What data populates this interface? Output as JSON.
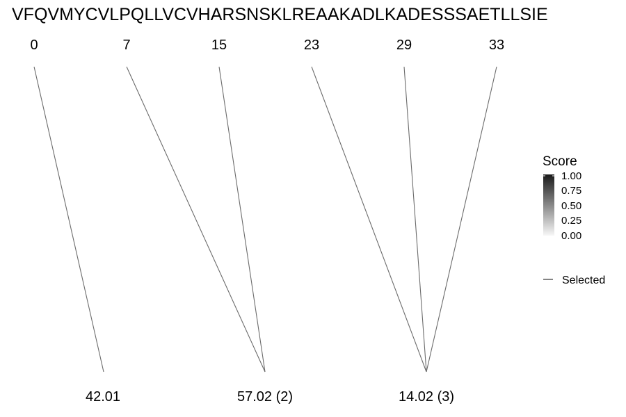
{
  "sequence": "VFQVMYCVLPQLLVCVHARSNSKLREAAKADLKADESSSAETLLSIE",
  "cut_positions": [
    "0",
    "7",
    "15",
    "23",
    "29",
    "33"
  ],
  "fragments": [
    {
      "label": "42.01",
      "from_positions": [
        "0"
      ]
    },
    {
      "label": "57.02 (2)",
      "from_positions": [
        "7",
        "15"
      ]
    },
    {
      "label": "14.02 (3)",
      "from_positions": [
        "23",
        "29",
        "33"
      ]
    }
  ],
  "legend": {
    "title": "Score",
    "ticks": [
      "1.00",
      "0.75",
      "0.50",
      "0.25",
      "0.00"
    ],
    "gradient_top_color": "#1a1a1a",
    "gradient_bottom_color": "#f7f7f7",
    "line_key_label": "Selected"
  },
  "colors": {
    "line": "#6b6b6b",
    "text": "#000000",
    "background": "#ffffff"
  }
}
